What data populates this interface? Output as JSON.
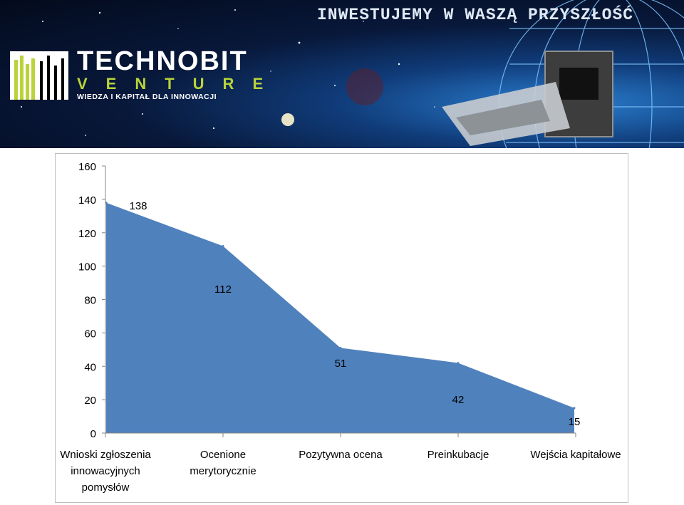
{
  "banner": {
    "slogan": "INWESTUJEMY W WASZĄ PRZYSZŁOŚĆ",
    "logo_title": "TECHNOBIT",
    "logo_subtitle": "VENTURE",
    "tagline": "WIEDZA I KAPITAŁ DLA INNOWACJI",
    "colors": {
      "accent_green": "#b9d33a",
      "text_white": "#ffffff"
    }
  },
  "chart_data": {
    "type": "area",
    "categories": [
      "Wnioski zgłoszenia innowacyjnych pomysłów",
      "Ocenione merytorycznie",
      "Pozytywna ocena",
      "Preinkubacje",
      "Wejścia kapitałowe"
    ],
    "category_lines": [
      [
        "Wnioski zgłoszenia",
        "innowacyjnych",
        "pomysłów"
      ],
      [
        "Ocenione",
        "merytorycznie"
      ],
      [
        "Pozytywna ocena"
      ],
      [
        "Preinkubacje"
      ],
      [
        "Wejścia kapitałowe"
      ]
    ],
    "values": [
      138,
      112,
      51,
      42,
      15
    ],
    "data_labels": [
      "138",
      "112",
      "51",
      "42",
      "15"
    ],
    "y_ticks": [
      "0",
      "20",
      "40",
      "60",
      "80",
      "100",
      "120",
      "140",
      "160"
    ],
    "ylim": [
      0,
      160
    ],
    "grid": false,
    "legend": "none",
    "fill_color": "#4f81bd",
    "title": "",
    "xlabel": "",
    "ylabel": ""
  }
}
